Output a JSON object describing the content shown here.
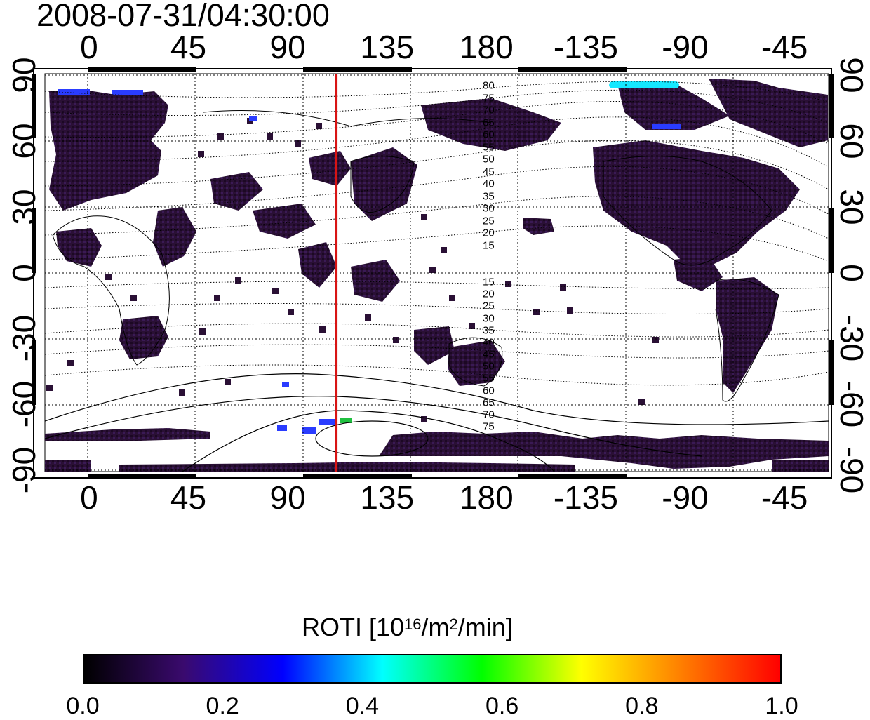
{
  "timestamp": "2008-07-31/04:30:00",
  "map": {
    "x_axis_ticks": [
      "0",
      "45",
      "90",
      "135",
      "180",
      "-135",
      "-90",
      "-45"
    ],
    "y_axis_ticks": [
      "90",
      "60",
      "30",
      "0",
      "-30",
      "-60",
      "-90"
    ],
    "longitude_ticks_deg": [
      0,
      45,
      90,
      135,
      180,
      225,
      270,
      315
    ],
    "latitude_ticks_deg": [
      90,
      60,
      30,
      0,
      -30,
      -60,
      -90
    ],
    "longitude_range_deg": [
      -20,
      335
    ],
    "latitude_range_deg": [
      -90,
      90
    ],
    "grid": "dotted",
    "red_meridian_lon_deg": 112,
    "contour_labels_north": [
      "80",
      "75",
      "70",
      "65",
      "60",
      "55",
      "50",
      "45",
      "40",
      "35",
      "30",
      "25",
      "20",
      "15"
    ],
    "contour_labels_south": [
      "15",
      "20",
      "25",
      "30",
      "35",
      "40",
      "45",
      "50",
      "55",
      "60",
      "65",
      "70",
      "75"
    ],
    "colors": {
      "land": "#2c1436",
      "pixel_low": "#1e0a24",
      "pixel_mid": "#3a1d5f",
      "pixel_blue": "#2a3cff",
      "pixel_cyan": "#15e8ff",
      "red_line": "#d81414"
    }
  },
  "colorbar": {
    "title_prefix": "ROTI  [10",
    "title_sup1": "16",
    "title_mid": "/m",
    "title_sup2": "2",
    "title_suffix": "/min]",
    "ticks": [
      "0.0",
      "0.2",
      "0.4",
      "0.6",
      "0.8",
      "1.0"
    ],
    "min": 0.0,
    "max": 1.0,
    "colormap": [
      "#000000",
      "#3a0a6e",
      "#0000ff",
      "#00ffff",
      "#00ff00",
      "#ffff00",
      "#ff7f00",
      "#ff0000"
    ]
  }
}
